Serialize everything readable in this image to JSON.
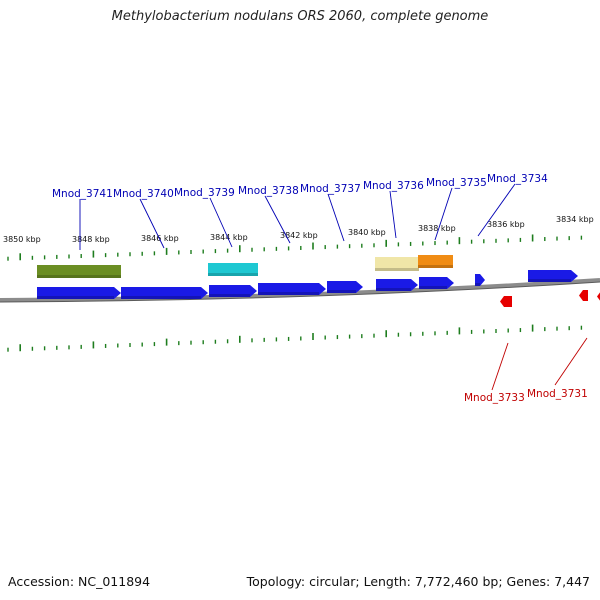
{
  "title": "Methylobacterium nodulans ORS 2060, complete genome",
  "accession": "Accession: NC_011894",
  "summary": "Topology: circular; Length: 7,772,460 bp; Genes: 7,447",
  "colors": {
    "forward_gene": "#1a1ae6",
    "reverse_gene": "#e60000",
    "tick": "#1e7d1e",
    "backbone": "#8c8c8c",
    "label_forward": "#0000b4",
    "label_reverse": "#c00000"
  },
  "ruler_labels": [
    "3850 kbp",
    "3848 kbp",
    "3846 kbp",
    "3844 kbp",
    "3842 kbp",
    "3840 kbp",
    "3838 kbp",
    "3836 kbp",
    "3834 kbp"
  ],
  "gene_labels_forward": [
    "Mnod_3741",
    "Mnod_3740",
    "Mnod_3739",
    "Mnod_3738",
    "Mnod_3737",
    "Mnod_3736",
    "Mnod_3735",
    "Mnod_3734"
  ],
  "gene_labels_reverse": [
    "Mnod_3733",
    "Mnod_3731"
  ],
  "feature_colors": {
    "olive": "#6b8e23",
    "cyan": "#1ec8d2",
    "khaki": "#f0e6a8",
    "orange": "#f08c14"
  }
}
